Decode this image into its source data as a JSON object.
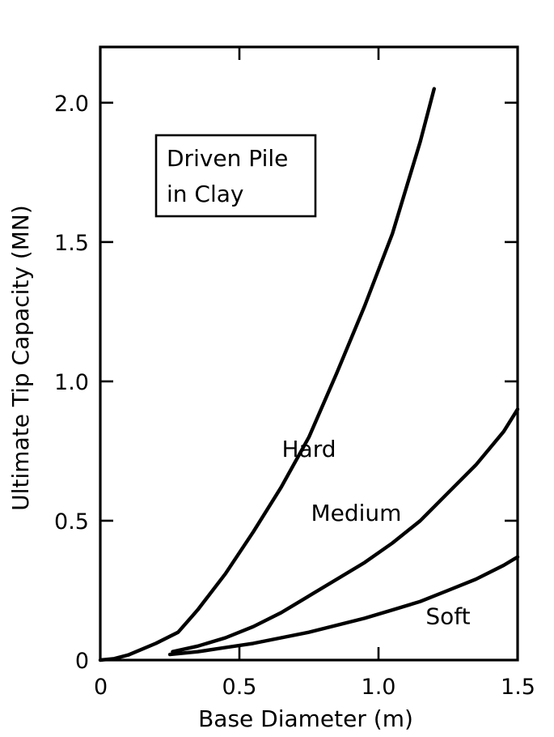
{
  "chart_data": {
    "type": "line",
    "title": "",
    "xlabel": "Base Diameter (m)",
    "ylabel": "Ultimate Tip Capacity (MN)",
    "xlim": [
      0,
      1.5
    ],
    "ylim": [
      0,
      2.2
    ],
    "x_ticks": [
      {
        "value": 0,
        "label": "0"
      },
      {
        "value": 0.5,
        "label": "0.5"
      },
      {
        "value": 1.0,
        "label": "1.0"
      },
      {
        "value": 1.5,
        "label": "1.5"
      }
    ],
    "y_ticks": [
      {
        "value": 0,
        "label": "0"
      },
      {
        "value": 0.5,
        "label": "0.5"
      },
      {
        "value": 1.0,
        "label": "1.0"
      },
      {
        "value": 1.5,
        "label": "1.5"
      },
      {
        "value": 2.0,
        "label": "2.0"
      }
    ],
    "grid": false,
    "legend": {
      "lines": [
        "Driven Pile",
        "in Clay"
      ],
      "placement": "top-left"
    },
    "series": [
      {
        "name": "Hard",
        "x": [
          0.0,
          0.05,
          0.1,
          0.2,
          0.28,
          0.35,
          0.45,
          0.55,
          0.65,
          0.75,
          0.85,
          0.95,
          1.05,
          1.15,
          1.2
        ],
        "y": [
          0.0,
          0.005,
          0.018,
          0.06,
          0.1,
          0.18,
          0.31,
          0.46,
          0.62,
          0.8,
          1.03,
          1.27,
          1.53,
          1.86,
          2.05
        ],
        "label_at": [
          0.75,
          0.73
        ]
      },
      {
        "name": "Medium",
        "x": [
          0.26,
          0.35,
          0.45,
          0.55,
          0.65,
          0.75,
          0.85,
          0.95,
          1.05,
          1.15,
          1.25,
          1.35,
          1.45,
          1.5
        ],
        "y": [
          0.03,
          0.05,
          0.08,
          0.12,
          0.17,
          0.23,
          0.29,
          0.35,
          0.42,
          0.5,
          0.6,
          0.7,
          0.82,
          0.9
        ],
        "label_at": [
          0.92,
          0.5
        ]
      },
      {
        "name": "Soft",
        "x": [
          0.25,
          0.35,
          0.45,
          0.55,
          0.65,
          0.75,
          0.85,
          0.95,
          1.05,
          1.15,
          1.25,
          1.35,
          1.45,
          1.5
        ],
        "y": [
          0.02,
          0.03,
          0.045,
          0.06,
          0.08,
          0.1,
          0.125,
          0.15,
          0.18,
          0.21,
          0.25,
          0.29,
          0.34,
          0.37
        ],
        "label_at": [
          1.25,
          0.13
        ]
      }
    ]
  }
}
